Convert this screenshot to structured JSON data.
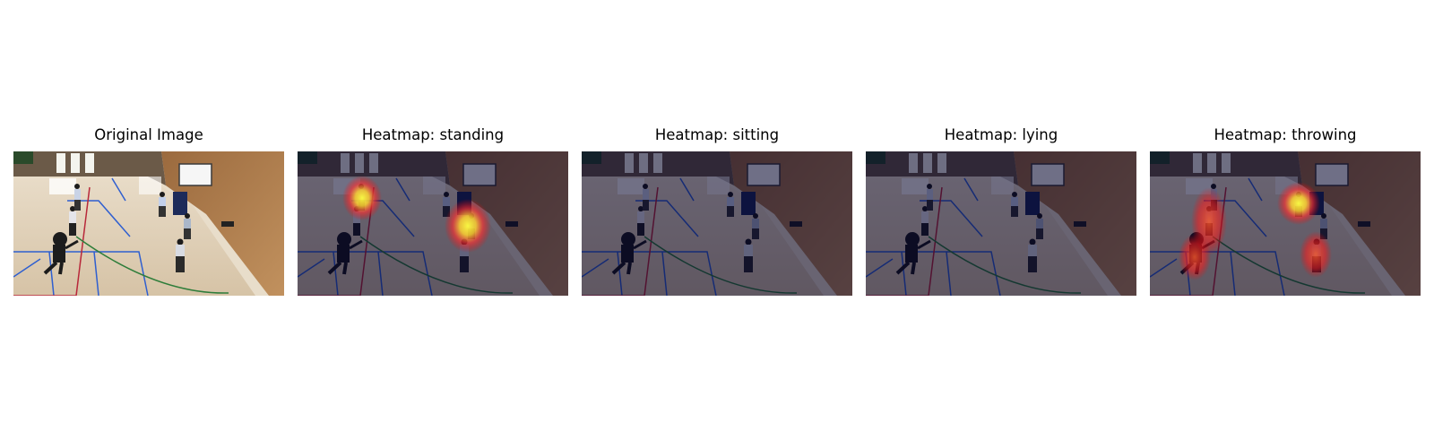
{
  "panels": [
    {
      "title": "Original Image",
      "overlay": "none"
    },
    {
      "title": "Heatmap: standing",
      "overlay": "heatmap"
    },
    {
      "title": "Heatmap: sitting",
      "overlay": "heatmap"
    },
    {
      "title": "Heatmap: lying",
      "overlay": "heatmap"
    },
    {
      "title": "Heatmap: throwing",
      "overlay": "heatmap"
    }
  ],
  "colors": {
    "background": "#ffffff",
    "floor": "#d8c7ac",
    "wall": "#a77a4b",
    "heat_hot": "#ffff3a",
    "heat_mid": "#ff2a2a",
    "court_blue": "#2f5fd0",
    "court_red": "#b8283a",
    "court_green": "#2e7d3a"
  }
}
